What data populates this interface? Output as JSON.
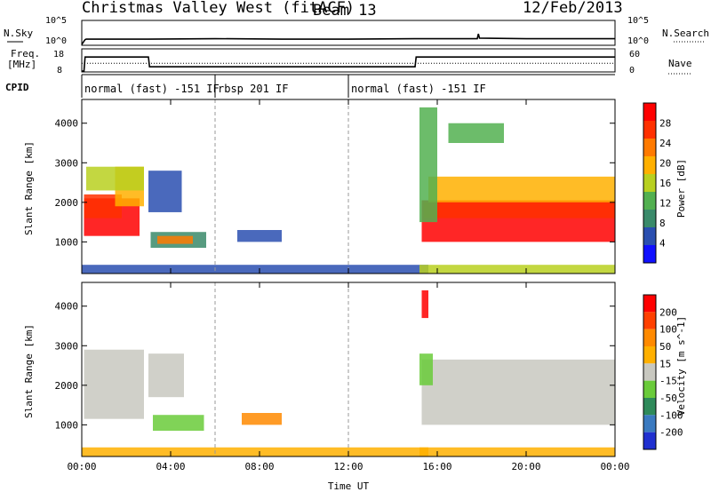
{
  "header": {
    "station": "Christmas Valley West (fitACF)",
    "beam": "Beam 13",
    "date": "12/Feb/2013"
  },
  "colors": {
    "power": [
      "#1010ff",
      "#2a4fb0",
      "#3a8a6a",
      "#52b050",
      "#b8d020",
      "#ffb000",
      "#ff7a00",
      "#ff3000",
      "#ff0000"
    ],
    "velocity": [
      "#2030d0",
      "#3a7ac0",
      "#2e8a5a",
      "#6acb3a",
      "#c8c8c0",
      "#ffb000",
      "#ff8a00",
      "#ff4000",
      "#ff0000"
    ]
  },
  "chart_data": [
    {
      "type": "line",
      "name": "nsky-nsearch",
      "labels": {
        "left": "N.Sky",
        "right": "N.Search"
      },
      "left_ticks": [
        "10^5",
        "10^0"
      ],
      "right_ticks": [
        "10^5",
        "10^0"
      ],
      "x": [
        0.0,
        0.15,
        0.2,
        3.0,
        6.0,
        9.0,
        12.0,
        15.0,
        17.8,
        17.85,
        17.9,
        20.0,
        24.0
      ],
      "y": [
        0.0,
        1.0,
        1.1,
        1.1,
        1.2,
        1.1,
        1.1,
        1.2,
        1.2,
        2.2,
        1.3,
        1.2,
        1.2
      ],
      "ylim": [
        0,
        5
      ]
    },
    {
      "type": "line",
      "name": "frequency-nave",
      "labels": {
        "left_line1": "Freq.",
        "left_line2": "[MHz]",
        "right": "Nave"
      },
      "left_ticks": [
        "18",
        "8"
      ],
      "right_ticks": [
        "60",
        "0"
      ],
      "freq": {
        "x": [
          0.0,
          0.1,
          0.15,
          3.0,
          3.05,
          15.0,
          15.05,
          24.0
        ],
        "y": [
          8,
          8,
          14.6,
          14.6,
          10.0,
          10.0,
          14.6,
          14.6
        ],
        "ylim": [
          8,
          18
        ]
      },
      "nave": {
        "x": [
          0,
          24
        ],
        "y": [
          22,
          22
        ],
        "ylim": [
          0,
          60
        ]
      }
    },
    {
      "type": "table",
      "name": "cpid",
      "label": "CPID",
      "segments": [
        {
          "start": 0.0,
          "end": 6.0,
          "label": "normal (fast) -151 IF"
        },
        {
          "start": 6.0,
          "end": 12.0,
          "label": "rbsp 201 IF"
        },
        {
          "start": 12.0,
          "end": 24.0,
          "label": "normal (fast) -151 IF"
        }
      ]
    },
    {
      "type": "heatmap",
      "name": "power",
      "ylabel": "Slant Range [km]",
      "yticks": [
        1000,
        2000,
        3000,
        4000
      ],
      "ylim": [
        200,
        4600
      ],
      "colorbar_label": "Power [dB]",
      "colorbar_ticks": [
        "28",
        "24",
        "20",
        "16",
        "12",
        "8",
        "4"
      ],
      "regions": [
        {
          "t0": 0.1,
          "t1": 2.6,
          "r0": 1150,
          "r1": 2100,
          "level": 8
        },
        {
          "t0": 0.1,
          "t1": 1.8,
          "r0": 1600,
          "r1": 2200,
          "level": 7
        },
        {
          "t0": 1.5,
          "t1": 2.8,
          "r0": 1900,
          "r1": 2900,
          "level": 5
        },
        {
          "t0": 0.2,
          "t1": 2.8,
          "r0": 2300,
          "r1": 2900,
          "level": 4
        },
        {
          "t0": 3.0,
          "t1": 4.5,
          "r0": 1750,
          "r1": 2800,
          "level": 1
        },
        {
          "t0": 3.1,
          "t1": 5.6,
          "r0": 850,
          "r1": 1250,
          "level": 2
        },
        {
          "t0": 3.4,
          "t1": 5.0,
          "r0": 950,
          "r1": 1150,
          "level": 6
        },
        {
          "t0": 7.0,
          "t1": 9.0,
          "r0": 1000,
          "r1": 1300,
          "level": 1
        },
        {
          "t0": 0.0,
          "t1": 15.6,
          "r0": 200,
          "r1": 420,
          "level": 1
        },
        {
          "t0": 15.3,
          "t1": 24.0,
          "r0": 1000,
          "r1": 2050,
          "level": 8
        },
        {
          "t0": 15.4,
          "t1": 24.0,
          "r0": 1600,
          "r1": 2000,
          "level": 7
        },
        {
          "t0": 15.6,
          "t1": 24.0,
          "r0": 2000,
          "r1": 2650,
          "level": 5
        },
        {
          "t0": 15.2,
          "t1": 16.0,
          "r0": 1500,
          "r1": 4400,
          "level": 3
        },
        {
          "t0": 16.5,
          "t1": 19.0,
          "r0": 3500,
          "r1": 4000,
          "level": 3
        },
        {
          "t0": 15.2,
          "t1": 24.0,
          "r0": 200,
          "r1": 420,
          "level": 4
        }
      ]
    },
    {
      "type": "heatmap",
      "name": "velocity",
      "ylabel": "Slant Range [km]",
      "yticks": [
        1000,
        2000,
        3000,
        4000
      ],
      "ylim": [
        200,
        4600
      ],
      "colorbar_label": "Velocity [m s^-1]",
      "colorbar_ticks": [
        "200",
        "100",
        "50",
        "15",
        "-15",
        "-50",
        "-100",
        "-200"
      ],
      "xlabel": "Time UT",
      "xticks": [
        "00:00",
        "04:00",
        "08:00",
        "12:00",
        "16:00",
        "20:00",
        "00:00"
      ],
      "xlim": [
        0,
        24
      ],
      "regions": [
        {
          "t0": 0.1,
          "t1": 2.8,
          "r0": 1150,
          "r1": 2900,
          "level": 4
        },
        {
          "t0": 3.0,
          "t1": 4.6,
          "r0": 1700,
          "r1": 2800,
          "level": 4
        },
        {
          "t0": 3.2,
          "t1": 5.5,
          "r0": 850,
          "r1": 1250,
          "level": 3
        },
        {
          "t0": 7.2,
          "t1": 9.0,
          "r0": 1000,
          "r1": 1300,
          "level": 6
        },
        {
          "t0": 0.0,
          "t1": 15.6,
          "r0": 200,
          "r1": 430,
          "level": 5
        },
        {
          "t0": 15.3,
          "t1": 24.0,
          "r0": 1000,
          "r1": 2650,
          "level": 4
        },
        {
          "t0": 15.2,
          "t1": 15.8,
          "r0": 2000,
          "r1": 2800,
          "level": 3
        },
        {
          "t0": 15.3,
          "t1": 15.6,
          "r0": 3700,
          "r1": 4400,
          "level": 8
        },
        {
          "t0": 15.2,
          "t1": 24.0,
          "r0": 200,
          "r1": 430,
          "level": 5
        }
      ]
    }
  ]
}
